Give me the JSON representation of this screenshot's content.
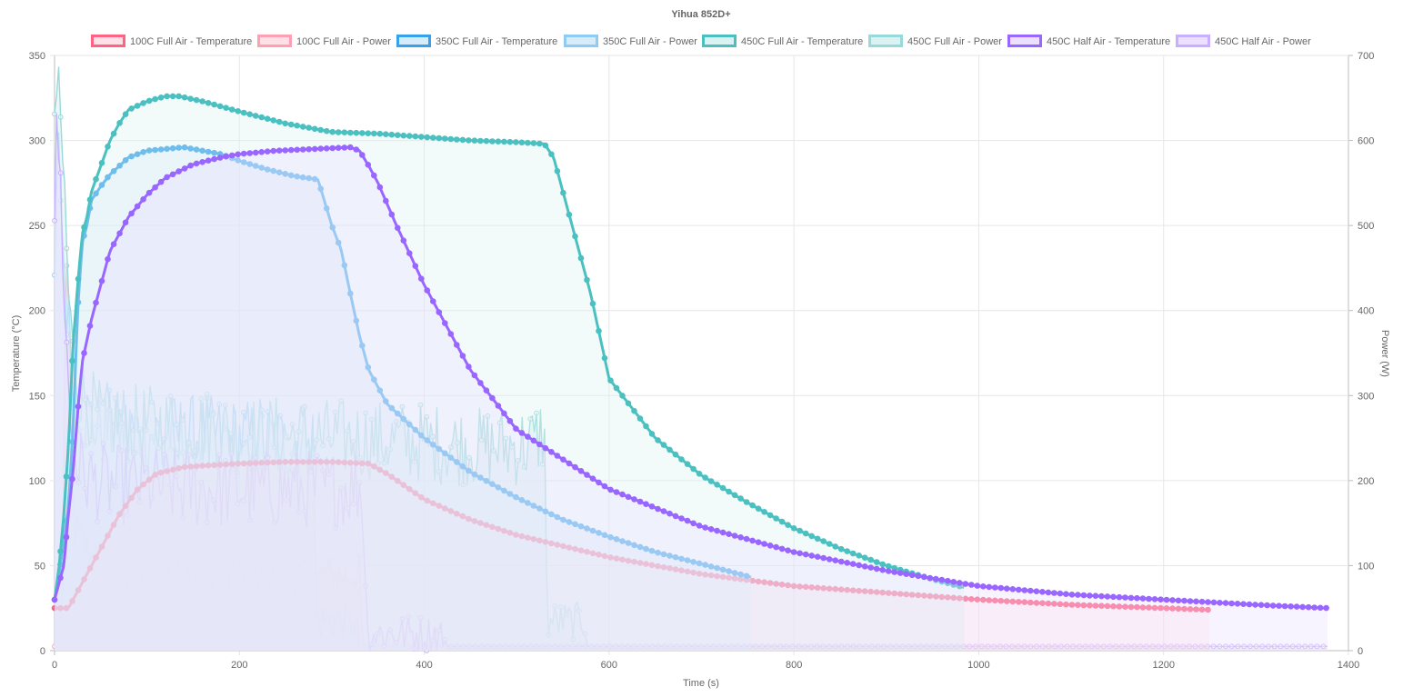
{
  "chart_data": {
    "type": "line",
    "title": "Yihua 852D+",
    "xlabel": "Time (s)",
    "ylabel_left": "Temperature (°C)",
    "ylabel_right": "Power (W)",
    "xlim": [
      0,
      1400
    ],
    "ylim_left": [
      0,
      350
    ],
    "ylim_right": [
      0,
      700
    ],
    "x_ticks": [
      "0",
      "200",
      "400",
      "600",
      "800",
      "1000",
      "1200",
      "1400"
    ],
    "y_ticks_left": [
      "0",
      "50",
      "100",
      "150",
      "200",
      "250",
      "300",
      "350"
    ],
    "y_ticks_right": [
      "0",
      "100",
      "200",
      "300",
      "400",
      "500",
      "600",
      "700"
    ],
    "grid": true,
    "legend_position": "top",
    "series": [
      {
        "name": "100C Full Air - Temperature",
        "axis": "left",
        "color": "#ff6384",
        "fill": "#ffe0e6",
        "x": [
          0,
          10,
          15,
          20,
          25,
          35,
          45,
          55,
          70,
          90,
          110,
          140,
          170,
          200,
          250,
          300,
          340,
          360,
          400,
          450,
          500,
          600,
          700,
          800,
          900,
          1000,
          1100,
          1200,
          1250
        ],
        "y": [
          25,
          25,
          25,
          30,
          35,
          45,
          55,
          65,
          80,
          95,
          104,
          108,
          109,
          110,
          111,
          111,
          110,
          104,
          89,
          77,
          68,
          55,
          45,
          38,
          34,
          30,
          27,
          25,
          24
        ]
      },
      {
        "name": "100C Full Air - Power",
        "axis": "right",
        "color": "#ff9fb4",
        "fill": "#ffe0e6",
        "x": [
          0,
          5,
          8,
          10,
          12,
          15,
          18,
          20,
          25,
          30,
          40,
          60,
          100,
          150,
          200,
          250,
          300,
          330,
          333,
          335,
          400,
          600,
          800,
          1000,
          1250
        ],
        "y": [
          5,
          5,
          5,
          200,
          480,
          380,
          200,
          160,
          140,
          130,
          110,
          95,
          90,
          90,
          88,
          88,
          88,
          90,
          5,
          5,
          5,
          5,
          5,
          5,
          5
        ]
      },
      {
        "name": "350C Full Air - Temperature",
        "axis": "left",
        "color": "#36a2eb",
        "fill": "#d7ecfb",
        "x": [
          0,
          5,
          10,
          15,
          20,
          25,
          30,
          35,
          40,
          50,
          60,
          70,
          80,
          100,
          120,
          140,
          160,
          180,
          200,
          230,
          260,
          285,
          300,
          310,
          320,
          330,
          340,
          360,
          400,
          450,
          500,
          550,
          600,
          650,
          700,
          755
        ],
        "y": [
          30,
          45,
          65,
          85,
          130,
          200,
          240,
          250,
          265,
          273,
          280,
          285,
          290,
          294,
          295,
          296,
          294,
          292,
          288,
          283,
          279,
          277,
          250,
          236,
          210,
          185,
          165,
          145,
          125,
          105,
          90,
          77,
          67,
          58,
          51,
          43
        ]
      },
      {
        "name": "350C Full Air - Power",
        "axis": "right",
        "color": "#8fcbf3",
        "fill": "#d7ecfb",
        "x": [
          0,
          5,
          8,
          12,
          20,
          30,
          40,
          60,
          100,
          150,
          200,
          250,
          280,
          283,
          300,
          325,
          330,
          335,
          400,
          600,
          755
        ],
        "y": [
          440,
          600,
          500,
          420,
          330,
          280,
          270,
          260,
          255,
          255,
          250,
          245,
          250,
          35,
          35,
          35,
          5,
          5,
          5,
          5,
          5
        ]
      },
      {
        "name": "450C Full Air - Temperature",
        "axis": "left",
        "color": "#4bc0c0",
        "fill": "#dbf2f2",
        "x": [
          0,
          5,
          10,
          15,
          20,
          25,
          30,
          35,
          40,
          50,
          60,
          70,
          80,
          100,
          120,
          135,
          160,
          200,
          250,
          300,
          350,
          400,
          450,
          500,
          530,
          540,
          560,
          580,
          600,
          650,
          700,
          750,
          800,
          850,
          900,
          950,
          985
        ],
        "y": [
          30,
          50,
          80,
          120,
          180,
          215,
          245,
          255,
          270,
          285,
          300,
          310,
          318,
          323,
          326,
          326,
          323,
          317,
          310,
          305,
          304,
          302,
          300,
          299,
          298,
          290,
          250,
          210,
          160,
          125,
          103,
          87,
          72,
          60,
          50,
          42,
          37
        ]
      },
      {
        "name": "450C Full Air - Power",
        "axis": "right",
        "color": "#9ad9d9",
        "fill": "#dbf2f2",
        "x": [
          0,
          3,
          6,
          10,
          15,
          20,
          30,
          50,
          100,
          150,
          200,
          300,
          400,
          450,
          500,
          520,
          530,
          533,
          550,
          575,
          578,
          600,
          800,
          985
        ],
        "y": [
          640,
          660,
          620,
          560,
          420,
          340,
          300,
          270,
          265,
          265,
          255,
          250,
          245,
          240,
          240,
          245,
          260,
          35,
          35,
          35,
          5,
          5,
          5,
          5
        ]
      },
      {
        "name": "450C Half Air - Temperature",
        "axis": "left",
        "color": "#9966ff",
        "fill": "#ebe0ff",
        "x": [
          0,
          10,
          15,
          20,
          25,
          30,
          40,
          50,
          60,
          70,
          80,
          100,
          120,
          150,
          180,
          200,
          240,
          280,
          320,
          330,
          340,
          350,
          370,
          400,
          450,
          500,
          600,
          700,
          800,
          900,
          1000,
          1100,
          1200,
          1300,
          1378
        ],
        "y": [
          30,
          50,
          80,
          105,
          140,
          170,
          195,
          215,
          235,
          245,
          255,
          268,
          278,
          286,
          290,
          292,
          294,
          295,
          296,
          294,
          285,
          275,
          250,
          215,
          165,
          130,
          95,
          73,
          58,
          47,
          38,
          33,
          30,
          27,
          25
        ]
      },
      {
        "name": "450C Half Air - Power",
        "axis": "right",
        "color": "#c9b0ff",
        "fill": "#ebe0ff",
        "x": [
          0,
          3,
          6,
          10,
          15,
          20,
          30,
          40,
          60,
          100,
          150,
          200,
          250,
          300,
          330,
          335,
          338,
          350,
          420,
          425,
          500,
          800,
          1000,
          1200,
          1378
        ],
        "y": [
          520,
          620,
          560,
          440,
          300,
          240,
          210,
          200,
          195,
          195,
          190,
          190,
          190,
          190,
          195,
          150,
          20,
          20,
          20,
          5,
          5,
          5,
          5,
          5,
          5
        ]
      }
    ]
  }
}
